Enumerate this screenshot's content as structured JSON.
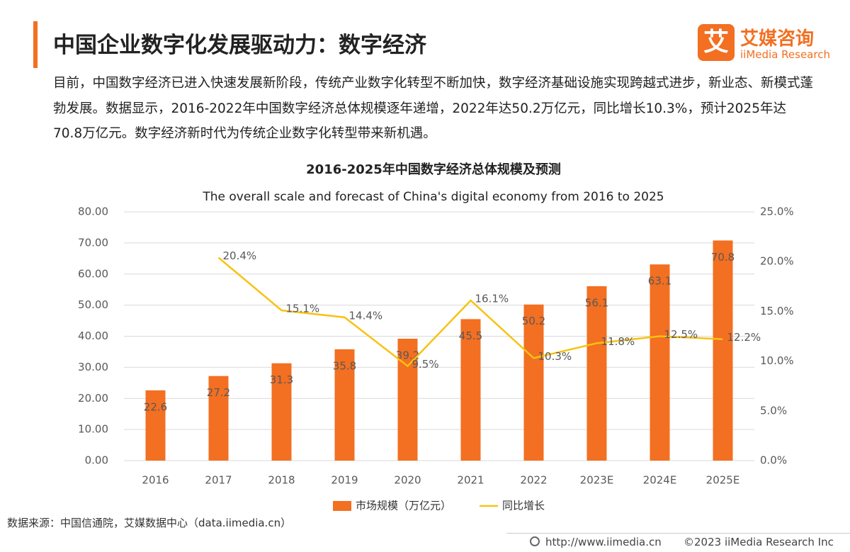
{
  "header": {
    "title": "中国企业数字化发展驱动力：数字经济",
    "logo_mark": "艾",
    "logo_cn": "艾媒咨询",
    "logo_en": "iiMedia Research"
  },
  "intro": "目前，中国数字经济已进入快速发展新阶段，传统产业数字化转型不断加快，数字经济基础设施实现跨越式进步，新业态、新模式蓬勃发展。数据显示，2016-2022年中国数字经济总体规模逐年递增，2022年达50.2万亿元，同比增长10.3%，预计2025年达70.8万亿元。数字经济新时代为传统企业数字化转型带来新机遇。",
  "chart_data": {
    "type": "bar",
    "title": "2016-2025年中国数字经济总体规模及预测",
    "subtitle": "The overall scale and forecast of China's digital economy from 2016 to 2025",
    "categories": [
      "2016",
      "2017",
      "2018",
      "2019",
      "2020",
      "2021",
      "2022",
      "2023E",
      "2024E",
      "2025E"
    ],
    "series": [
      {
        "name": "市场规模（万亿元）",
        "type": "bar",
        "color": "#f36f21",
        "values": [
          22.6,
          27.2,
          31.3,
          35.8,
          39.2,
          45.5,
          50.2,
          56.1,
          63.1,
          70.8
        ]
      },
      {
        "name": "同比增长",
        "type": "line",
        "axis": "y2",
        "color": "#f7c212",
        "values": [
          null,
          20.4,
          15.1,
          14.4,
          9.5,
          16.1,
          10.3,
          11.8,
          12.5,
          12.2
        ],
        "value_labels": [
          null,
          "20.4%",
          "15.1%",
          "14.4%",
          "9.5%",
          "16.1%",
          "10.3%",
          "11.8%",
          "12.5%",
          "12.2%"
        ]
      }
    ],
    "ylim": [
      0,
      80
    ],
    "yticks": [
      {
        "value": 0,
        "label": "0.00"
      },
      {
        "value": 10,
        "label": "10.00"
      },
      {
        "value": 20,
        "label": "20.00"
      },
      {
        "value": 30,
        "label": "30.00"
      },
      {
        "value": 40,
        "label": "40.00"
      },
      {
        "value": 50,
        "label": "50.00"
      },
      {
        "value": 60,
        "label": "60.00"
      },
      {
        "value": 70,
        "label": "70.00"
      },
      {
        "value": 80,
        "label": "80.00"
      }
    ],
    "y2lim": [
      0,
      25
    ],
    "y2ticks": [
      {
        "value": 0,
        "label": "0.0%"
      },
      {
        "value": 5,
        "label": "5.0%"
      },
      {
        "value": 10,
        "label": "10.0%"
      },
      {
        "value": 15,
        "label": "15.0%"
      },
      {
        "value": 20,
        "label": "20.0%"
      },
      {
        "value": 25,
        "label": "25.0%"
      }
    ],
    "grid": true,
    "legend": "bottom"
  },
  "source": "数据来源：中国信通院，艾媒数据中心（data.iimedia.cn）",
  "footer": {
    "url": "http://www.iimedia.cn",
    "copyright": "©2023  iiMedia Research  Inc"
  }
}
